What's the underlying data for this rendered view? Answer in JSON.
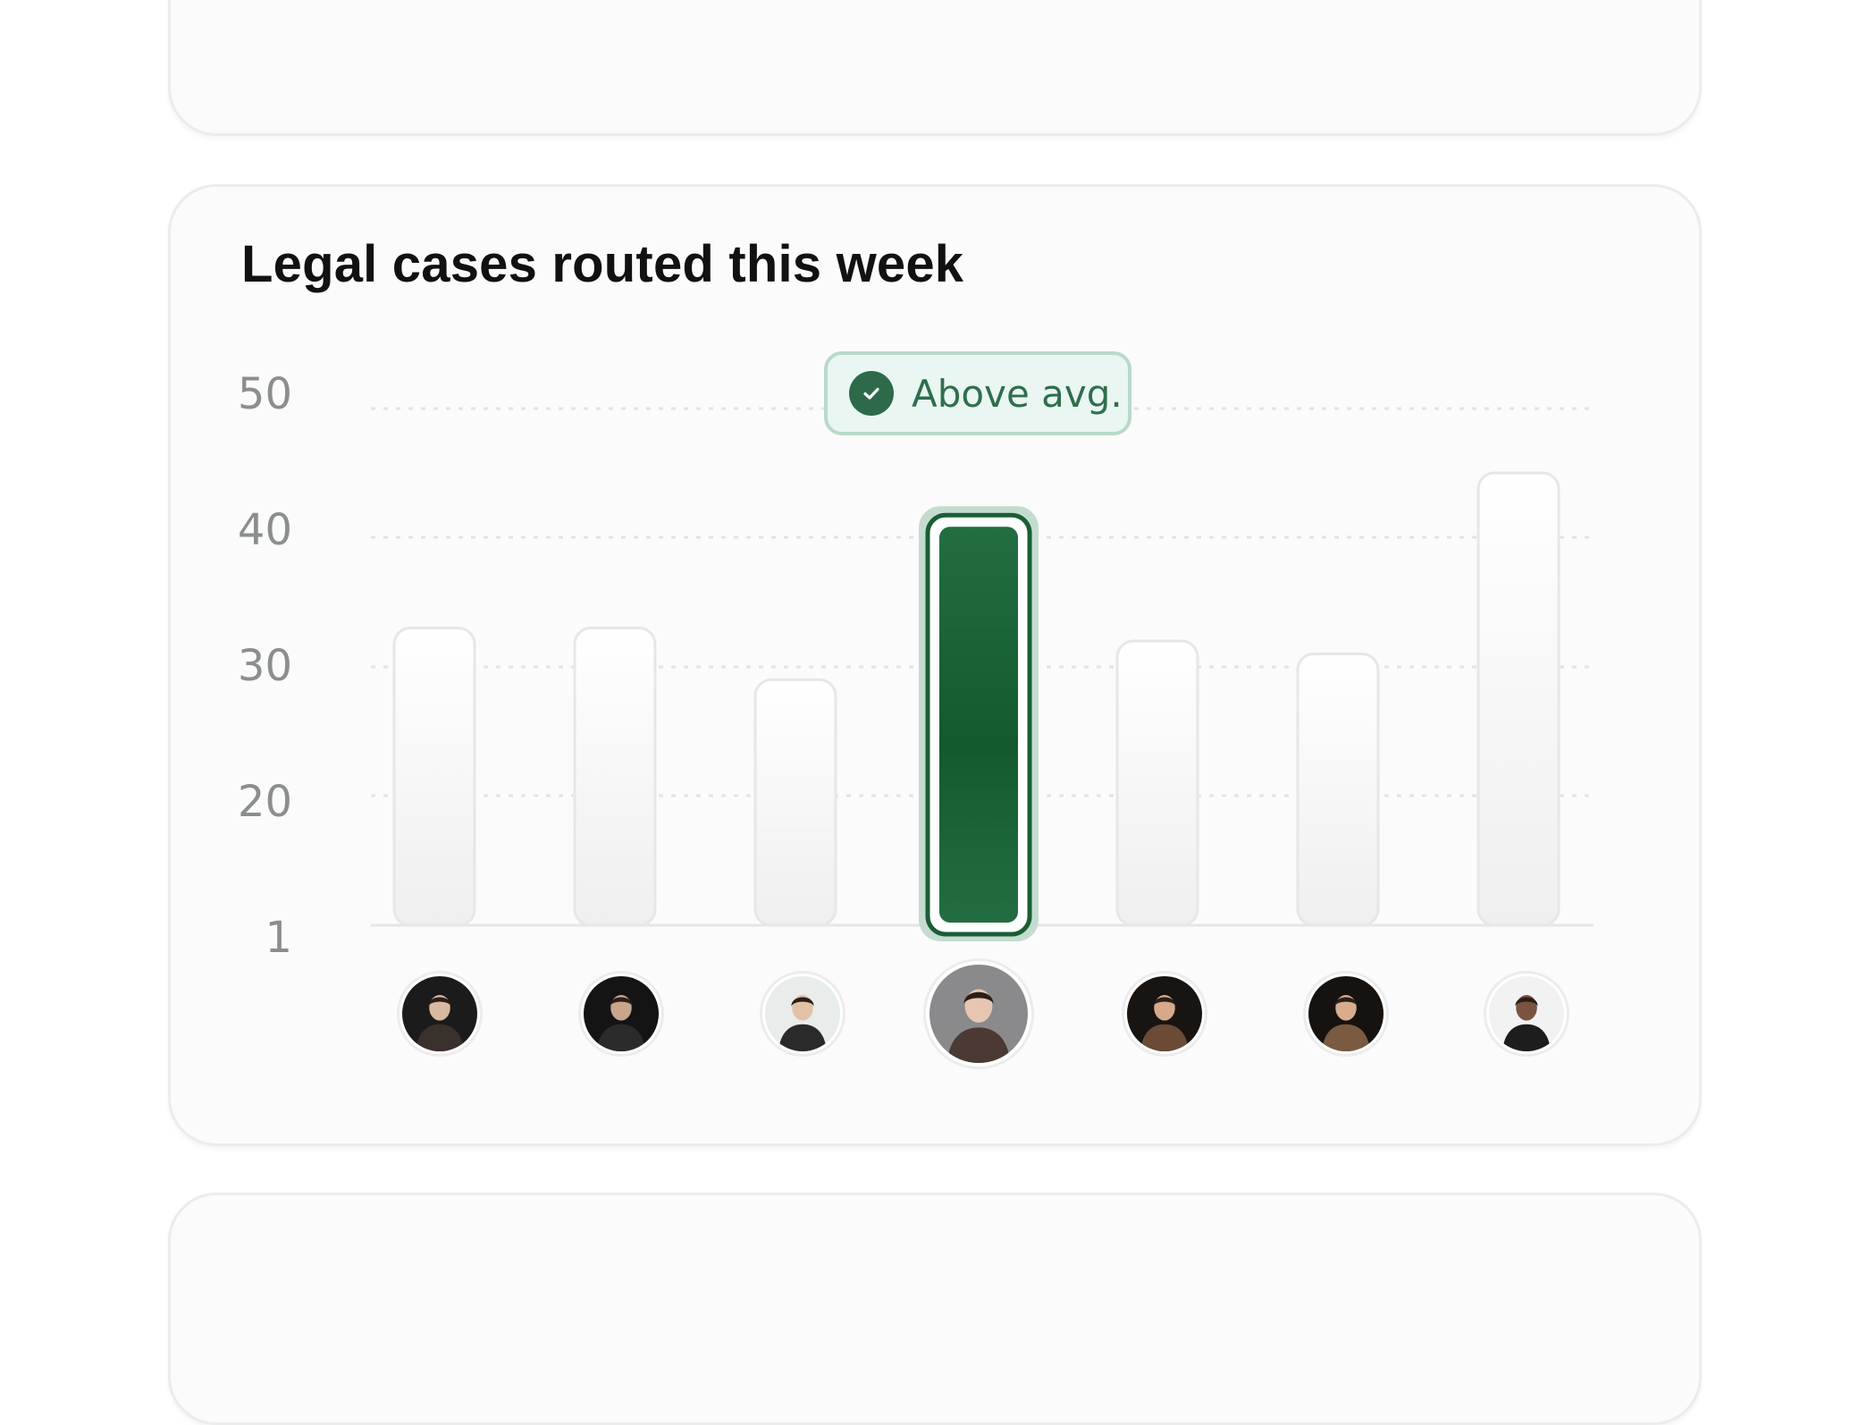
{
  "chart_data": {
    "type": "bar",
    "title": "Legal cases routed this week",
    "y_ticks": [
      "50",
      "40",
      "30",
      "20",
      "1"
    ],
    "ylim": [
      1,
      50
    ],
    "grid": "horizontal dotted",
    "values": [
      33,
      33,
      29,
      42,
      32,
      31,
      45
    ],
    "highlight_index": 3,
    "highlight_badge": "Above avg.",
    "categories_shown_as": "avatar photos",
    "colors": {
      "highlight": "#1a5e34",
      "bar": "#f3f3f3",
      "badge_text": "#2f6e4e",
      "badge_bg": "#e9f6f1"
    }
  },
  "icons": {
    "badge_icon": "check-circle-icon"
  }
}
